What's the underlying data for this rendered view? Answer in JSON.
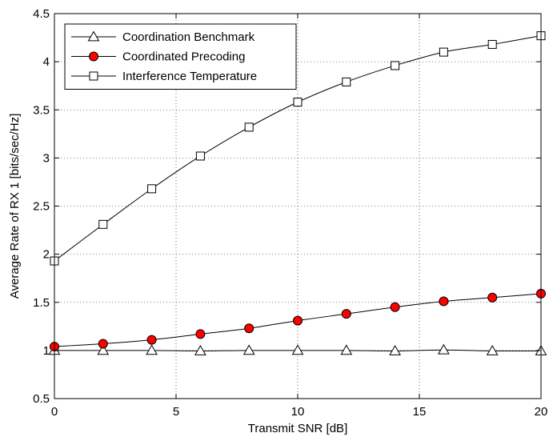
{
  "chart_data": {
    "type": "line",
    "title": "",
    "xlabel": "Transmit SNR [dB]",
    "ylabel": "Average Rate of RX 1 [bits/sec/Hz]",
    "xlim": [
      0,
      20
    ],
    "ylim": [
      0.5,
      4.5
    ],
    "xticks": [
      0,
      5,
      10,
      15,
      20
    ],
    "yticks": [
      0.5,
      1,
      1.5,
      2,
      2.5,
      3,
      3.5,
      4,
      4.5
    ],
    "xtick_labels": [
      "0",
      "5",
      "10",
      "15",
      "20"
    ],
    "ytick_labels": [
      "0.5",
      "1",
      "1.5",
      "2",
      "2.5",
      "3",
      "3.5",
      "4",
      "4.5"
    ],
    "grid": true,
    "legend_position": "top-left",
    "x": [
      0,
      2,
      4,
      6,
      8,
      10,
      12,
      14,
      16,
      18,
      20
    ],
    "series": [
      {
        "name": "Coordination Benchmark",
        "marker": "triangle",
        "color": "#000000",
        "values": [
          1.0,
          1.0,
          1.0,
          0.995,
          1.0,
          1.0,
          1.0,
          0.995,
          1.005,
          0.995,
          0.995
        ]
      },
      {
        "name": "Coordinated Precoding",
        "marker": "circle",
        "color": "#000000",
        "fill": "#ff0000",
        "values": [
          1.04,
          1.07,
          1.11,
          1.17,
          1.23,
          1.31,
          1.38,
          1.45,
          1.51,
          1.55,
          1.59
        ]
      },
      {
        "name": "Interference Temperature",
        "marker": "square",
        "color": "#000000",
        "values": [
          1.93,
          2.31,
          2.68,
          3.02,
          3.32,
          3.58,
          3.79,
          3.96,
          4.1,
          4.18,
          4.27
        ]
      }
    ]
  }
}
